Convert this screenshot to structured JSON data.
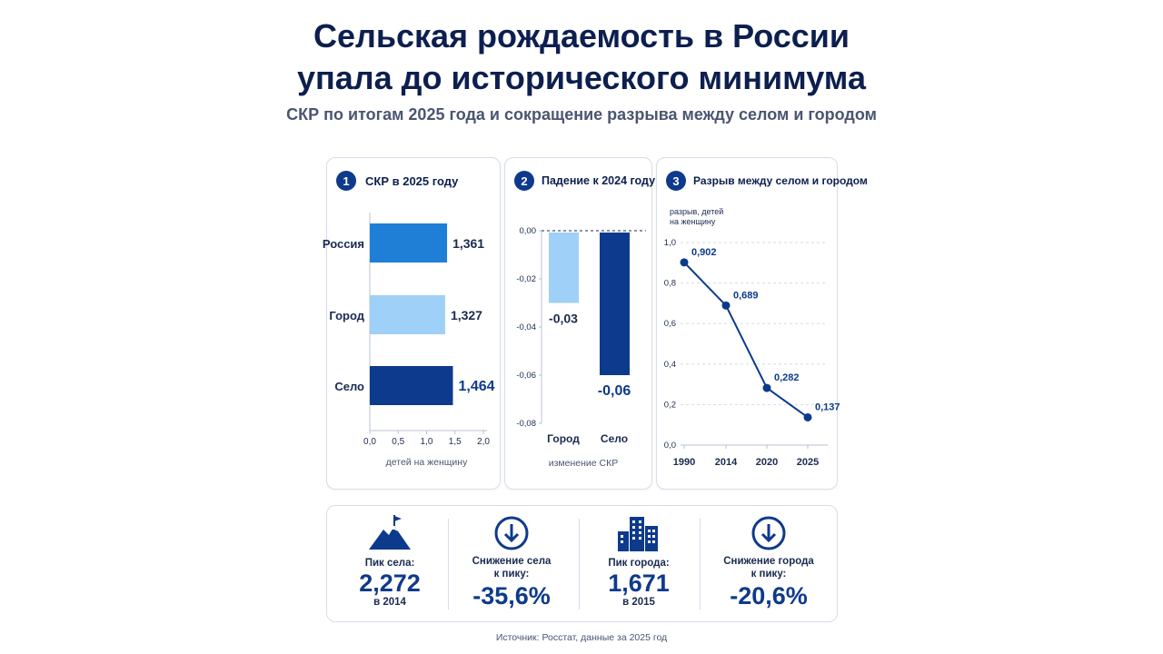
{
  "header": {
    "title_line1": "Сельская рождаемость в России",
    "title_line2": "упала до исторического минимума",
    "subtitle": "СКР по итогам 2025 года и сокращение разрыва между селом и городом"
  },
  "colors": {
    "dark_blue": "#0d3a8c",
    "mid_blue": "#1f7fd6",
    "light_blue": "#9fd0f7",
    "navy_text": "#0d1f4f"
  },
  "panels": {
    "p1": {
      "number": "1",
      "title": "СКР в 2025 году"
    },
    "p2": {
      "number": "2",
      "title": "Падение к 2024 году"
    },
    "p3": {
      "number": "3",
      "title": "Разрыв между селом и городом"
    }
  },
  "chart_data": [
    {
      "type": "bar",
      "orientation": "horizontal",
      "categories": [
        "Россия",
        "Город",
        "Село"
      ],
      "values": [
        1.361,
        1.327,
        1.464
      ],
      "value_labels": [
        "1,361",
        "1,327",
        "1,464"
      ],
      "bar_colors": [
        "#1f7fd6",
        "#9fd0f7",
        "#0d3a8c"
      ],
      "xlabel": "детей на женщину",
      "xlim": [
        0,
        2.0
      ],
      "xticks": [
        "0,0",
        "0,5",
        "1,0",
        "1,5",
        "2,0"
      ]
    },
    {
      "type": "bar",
      "categories": [
        "Город",
        "Село"
      ],
      "values": [
        -0.03,
        -0.06
      ],
      "value_labels": [
        "-0,03",
        "-0,06"
      ],
      "bar_colors": [
        "#9fd0f7",
        "#0d3a8c"
      ],
      "xlabel": "изменение СКР",
      "ylim": [
        -0.08,
        0.0
      ],
      "yticks": [
        "0,00",
        "-0,02",
        "-0,04",
        "-0,06",
        "-0,08"
      ]
    },
    {
      "type": "line",
      "x": [
        "1990",
        "2014",
        "2020",
        "2025"
      ],
      "values": [
        0.902,
        0.689,
        0.282,
        0.137
      ],
      "value_labels": [
        "0,902",
        "0,689",
        "0,282",
        "0,137"
      ],
      "ylabel_line1": "разрыв, детей",
      "ylabel_line2": "на женщину",
      "ylim": [
        0,
        1.0
      ],
      "yticks": [
        "0,0",
        "0,2",
        "0,4",
        "0,6",
        "0,8",
        "1,0"
      ],
      "grid": true
    }
  ],
  "stats": [
    {
      "icon": "mountain-flag-icon",
      "label_line1": "Пик села:",
      "value": "2,272",
      "year": "в 2014"
    },
    {
      "icon": "arrow-down-circle-icon",
      "label_line1": "Снижение села",
      "label_line2": "к пику:",
      "value": "-35,6%"
    },
    {
      "icon": "city-buildings-icon",
      "label_line1": "Пик города:",
      "value": "1,671",
      "year": "в 2015"
    },
    {
      "icon": "arrow-down-circle-icon",
      "label_line1": "Снижение города",
      "label_line2": "к пику:",
      "value": "-20,6%"
    }
  ],
  "source": "Источник: Росстат, данные за 2025 год"
}
